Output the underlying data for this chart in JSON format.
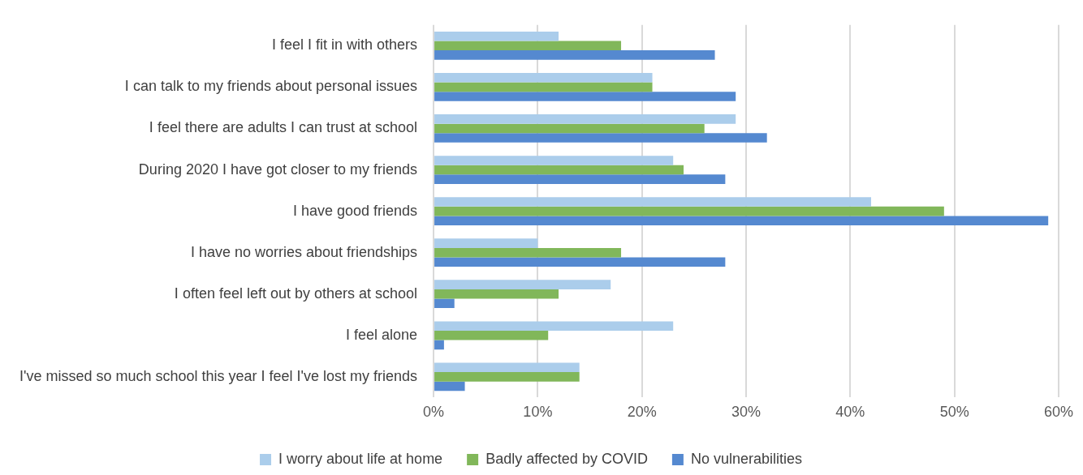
{
  "chart_data": {
    "type": "bar",
    "orientation": "horizontal",
    "categories": [
      "I feel I fit in with others",
      "I can talk to my friends about personal issues",
      "I feel there are adults I can trust at school",
      "During 2020 I have got closer to my friends",
      "I have good friends",
      "I have no worries about friendships",
      "I often feel left out by others at school",
      "I feel alone",
      "I've missed so much school this year I feel I've lost my friends"
    ],
    "series": [
      {
        "name": "I worry about life at home",
        "color": "#abcdeb",
        "values": [
          12,
          21,
          29,
          23,
          42,
          10,
          17,
          23,
          14
        ]
      },
      {
        "name": "Badly affected by COVID",
        "color": "#81b75a",
        "values": [
          18,
          21,
          26,
          24,
          49,
          18,
          12,
          11,
          14
        ]
      },
      {
        "name": "No vulnerabilities",
        "color": "#5589d0",
        "values": [
          27,
          29,
          32,
          28,
          59,
          28,
          2,
          1,
          3
        ]
      }
    ],
    "xlim": [
      0,
      60
    ],
    "xticks": [
      {
        "value": 0,
        "label": "0%"
      },
      {
        "value": 10,
        "label": "10%"
      },
      {
        "value": 20,
        "label": "20%"
      },
      {
        "value": 30,
        "label": "30%"
      },
      {
        "value": 40,
        "label": "40%"
      },
      {
        "value": 50,
        "label": "50%"
      },
      {
        "value": 60,
        "label": "60%"
      }
    ],
    "grid": "x",
    "legend": "bottom"
  }
}
